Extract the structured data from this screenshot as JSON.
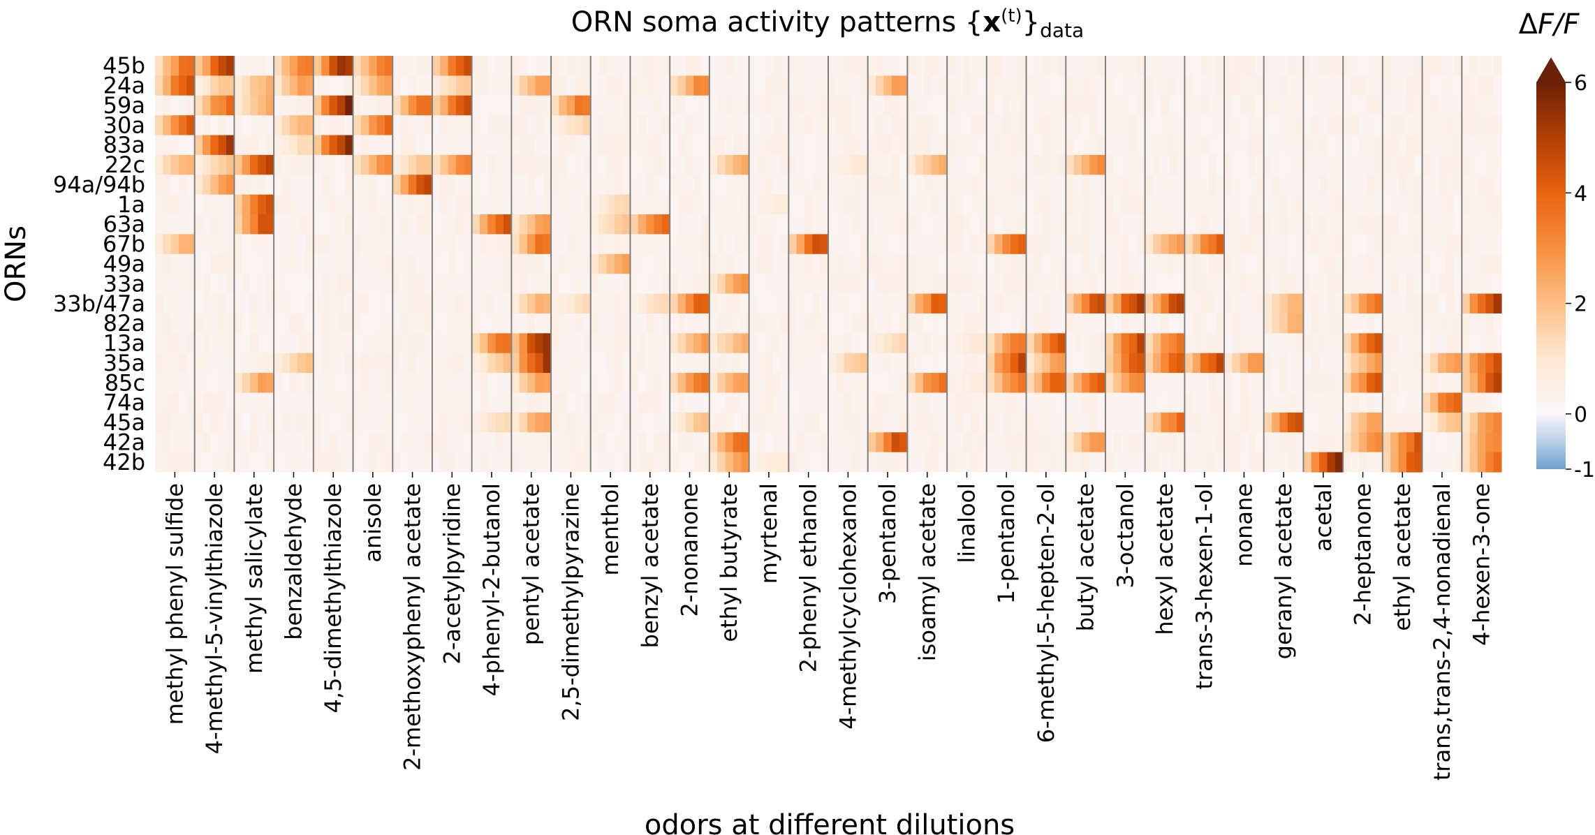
{
  "chart_data": {
    "type": "heatmap",
    "title": "ORN soma activity patterns {x(t)}data",
    "title_parts": {
      "main": "ORN soma activity patterns {",
      "bold": "x",
      "sup": "(t)",
      "close": "}",
      "sub": "data"
    },
    "xlabel": "odors at different dilutions",
    "ylabel": "ORNs",
    "colorbar": {
      "label": "ΔF/F",
      "label_parts": {
        "delta": "Δ",
        "italic": "F/F"
      },
      "min": -1,
      "max": 6,
      "ticks": [
        "-1",
        "0",
        "2",
        "4",
        "6"
      ],
      "extend": "max",
      "colormap": "orange-blue diverging (0 = white)"
    },
    "rows": [
      "45b",
      "24a",
      "59a",
      "30a",
      "83a",
      "22c",
      "94a/94b",
      "1a",
      "63a",
      "67b",
      "49a",
      "33a",
      "33b/47a",
      "82a",
      "13a",
      "35a",
      "85c",
      "74a",
      "45a",
      "42a",
      "42b"
    ],
    "odors": [
      "methyl phenyl sulfide",
      "4-methyl-5-vinylthiazole",
      "methyl salicylate",
      "benzaldehyde",
      "4,5-dimethylthiazole",
      "anisole",
      "2-methoxyphenyl acetate",
      "2-acetylpyridine",
      "4-phenyl-2-butanol",
      "pentyl acetate",
      "2,5-dimethylpyrazine",
      "menthol",
      "benzyl acetate",
      "2-nonanone",
      "ethyl butyrate",
      "myrtenal",
      "2-phenyl ethanol",
      "4-methylcyclohexanol",
      "3-pentanol",
      "isoamyl acetate",
      "linalool",
      "1-pentanol",
      "6-methyl-5-hepten-2-ol",
      "butyl acetate",
      "3-octanol",
      "hexyl acetate",
      "trans-3-hexen-1-ol",
      "nonane",
      "geranyl acetate",
      "acetal",
      "2-heptanone",
      "ethyl acetate",
      "trans,trans-2,4-nonadienal",
      "4-hexen-3-one"
    ],
    "dilutions_per_odor": 5,
    "dilution_order": "lowest to highest concentration, left to right",
    "peak_response_per_odor": [
      {
        "odor": "methyl phenyl sulfide",
        "peaks": {
          "45b": 4,
          "24a": 4.8,
          "30a": 4.5,
          "22c": 2.5,
          "67b": 2.5
        }
      },
      {
        "odor": "4-methyl-5-vinylthiazole",
        "peaks": {
          "45b": 5.5,
          "24a": 2,
          "59a": 4,
          "83a": 5.5,
          "22c": 2,
          "94a/94b": 3
        }
      },
      {
        "odor": "methyl salicylate",
        "peaks": {
          "22c": 5.5,
          "59a": 2.5,
          "24a": 2.5,
          "1a": 5,
          "63a": 5,
          "85c": 3
        }
      },
      {
        "odor": "benzaldehyde",
        "peaks": {
          "45b": 4,
          "24a": 3,
          "30a": 2.5,
          "83a": 1.5,
          "35a": 2
        }
      },
      {
        "odor": "4,5-dimethylthiazole",
        "peaks": {
          "45b": 6,
          "59a": 6,
          "83a": 6
        }
      },
      {
        "odor": "anisole",
        "peaks": {
          "45b": 4,
          "24a": 3,
          "30a": 4,
          "22c": 3.5
        }
      },
      {
        "odor": "2-methoxyphenyl acetate",
        "peaks": {
          "59a": 4,
          "94a/94b": 5,
          "22c": 2
        }
      },
      {
        "odor": "2-acetylpyridine",
        "peaks": {
          "45b": 5,
          "59a": 5,
          "24a": 2,
          "22c": 3.5
        }
      },
      {
        "odor": "4-phenyl-2-butanol",
        "peaks": {
          "63a": 4.5,
          "13a": 4,
          "35a": 2,
          "45a": 1.5
        }
      },
      {
        "odor": "pentyl acetate",
        "peaks": {
          "13a": 6,
          "35a": 5.5,
          "85c": 3,
          "33b/47a": 2.5,
          "63a": 3,
          "67b": 4,
          "45a": 3,
          "24a": 3
        }
      },
      {
        "odor": "2,5-dimethylpyrazine",
        "peaks": {
          "59a": 4,
          "30a": 1.5,
          "33b/47a": 1.5
        }
      },
      {
        "odor": "menthol",
        "peaks": {
          "49a": 3,
          "63a": 2,
          "1a": 1.5
        }
      },
      {
        "odor": "benzyl acetate",
        "peaks": {
          "63a": 4.5,
          "33b/47a": 1.5
        }
      },
      {
        "odor": "2-nonanone",
        "peaks": {
          "24a": 3.5,
          "33b/47a": 4.5,
          "13a": 3,
          "85c": 4,
          "45a": 2
        }
      },
      {
        "odor": "ethyl butyrate",
        "peaks": {
          "42a": 4,
          "42b": 3,
          "33a": 3,
          "22c": 2.5,
          "13a": 2.5,
          "85c": 3
        }
      },
      {
        "odor": "myrtenal",
        "peaks": {
          "42b": 1,
          "1a": 0.8
        }
      },
      {
        "odor": "2-phenyl ethanol",
        "peaks": {
          "67b": 5
        }
      },
      {
        "odor": "4-methylcyclohexanol",
        "peaks": {
          "35a": 2,
          "22c": 1
        }
      },
      {
        "odor": "3-pentanol",
        "peaks": {
          "42a": 5,
          "24a": 3,
          "13a": 1.5
        }
      },
      {
        "odor": "isoamyl acetate",
        "peaks": {
          "33b/47a": 4.5,
          "85c": 4,
          "22c": 2.5
        }
      },
      {
        "odor": "linalool",
        "peaks": {
          "13a": 1,
          "85c": 0.8
        }
      },
      {
        "odor": "1-pentanol",
        "peaks": {
          "35a": 5,
          "67b": 4.5,
          "13a": 4,
          "85c": 4
        }
      },
      {
        "odor": "6-methyl-5-hepten-2-ol",
        "peaks": {
          "13a": 4.5,
          "85c": 4.5,
          "35a": 3
        }
      },
      {
        "odor": "butyl acetate",
        "peaks": {
          "33b/47a": 5,
          "85c": 4.5,
          "22c": 3.5,
          "42a": 3
        }
      },
      {
        "odor": "3-octanol",
        "peaks": {
          "33b/47a": 5.5,
          "13a": 5,
          "35a": 5,
          "85c": 3.5
        }
      },
      {
        "odor": "hexyl acetate",
        "peaks": {
          "33b/47a": 5,
          "35a": 4.5,
          "45a": 4,
          "13a": 4,
          "67b": 3
        }
      },
      {
        "odor": "trans-3-hexen-1-ol",
        "peaks": {
          "35a": 5,
          "67b": 4.5
        }
      },
      {
        "odor": "nonane",
        "peaks": {
          "35a": 3
        }
      },
      {
        "odor": "geranyl acetate",
        "peaks": {
          "45a": 5,
          "33b/47a": 2.5,
          "82a": 2.5
        }
      },
      {
        "odor": "acetal",
        "peaks": {
          "42b": 6
        }
      },
      {
        "odor": "2-heptanone",
        "peaks": {
          "85c": 4.5,
          "13a": 4.5,
          "33b/47a": 4,
          "45a": 3,
          "42a": 3.5,
          "35a": 3
        }
      },
      {
        "odor": "ethyl acetate",
        "peaks": {
          "42a": 4.5,
          "42b": 4.5
        }
      },
      {
        "odor": "trans,trans-2,4-nonadienal",
        "peaks": {
          "74a": 4.5,
          "35a": 3,
          "45a": 2
        }
      },
      {
        "odor": "4-hexen-3-one",
        "peaks": {
          "33b/47a": 5.5,
          "35a": 5,
          "85c": 5,
          "42a": 3.5,
          "42b": 4,
          "45a": 3.5
        }
      }
    ]
  }
}
